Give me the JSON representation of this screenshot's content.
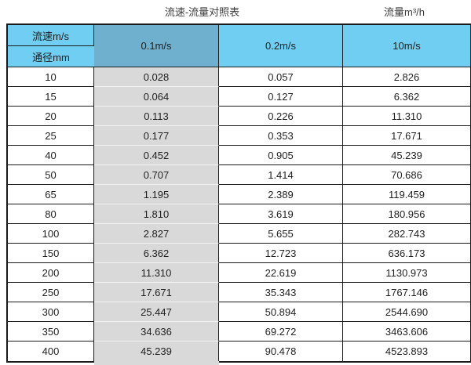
{
  "page": {
    "title_left": "流速-流量对照表",
    "title_right": "流量m³/h"
  },
  "table": {
    "corner_top": "流速m/s",
    "corner_bottom": "通径mm",
    "velocity_columns": [
      "0.1m/s",
      "0.2m/s",
      "10m/s"
    ],
    "highlighted_column_index": 0,
    "rows": [
      {
        "diameter": "10",
        "values": [
          "0.028",
          "0.057",
          "2.826"
        ]
      },
      {
        "diameter": "15",
        "values": [
          "0.064",
          "0.127",
          "6.362"
        ]
      },
      {
        "diameter": "20",
        "values": [
          "0.113",
          "0.226",
          "11.310"
        ]
      },
      {
        "diameter": "25",
        "values": [
          "0.177",
          "0.353",
          "17.671"
        ]
      },
      {
        "diameter": "40",
        "values": [
          "0.452",
          "0.905",
          "45.239"
        ]
      },
      {
        "diameter": "50",
        "values": [
          "0.707",
          "1.414",
          "70.686"
        ]
      },
      {
        "diameter": "65",
        "values": [
          "1.195",
          "2.389",
          "119.459"
        ]
      },
      {
        "diameter": "80",
        "values": [
          "1.810",
          "3.619",
          "180.956"
        ]
      },
      {
        "diameter": "100",
        "values": [
          "2.827",
          "5.655",
          "282.743"
        ]
      },
      {
        "diameter": "150",
        "values": [
          "6.362",
          "12.723",
          "636.173"
        ]
      },
      {
        "diameter": "200",
        "values": [
          "11.310",
          "22.619",
          "1130.973"
        ]
      },
      {
        "diameter": "250",
        "values": [
          "17.671",
          "35.343",
          "1767.146"
        ]
      },
      {
        "diameter": "300",
        "values": [
          "25.447",
          "50.894",
          "2544.690"
        ]
      },
      {
        "diameter": "350",
        "values": [
          "34.636",
          "69.272",
          "3463.606"
        ]
      },
      {
        "diameter": "400",
        "values": [
          "45.239",
          "90.478",
          "4523.893"
        ]
      }
    ]
  },
  "colors": {
    "header_blue": "#6fcef2",
    "highlight_header_blue": "#6fb0cf",
    "highlight_gray": "#d9d9d9",
    "border_black": "#1a1a1a"
  },
  "chart_data": {
    "type": "table",
    "title": "流速-流量对照表",
    "value_unit_label": "流量m³/h",
    "column_axis_label": "流速m/s",
    "row_axis_label": "通径mm",
    "categories": [
      10,
      15,
      20,
      25,
      40,
      50,
      65,
      80,
      100,
      150,
      200,
      250,
      300,
      350,
      400
    ],
    "series": [
      {
        "name": "0.1m/s",
        "values": [
          0.028,
          0.064,
          0.113,
          0.177,
          0.452,
          0.707,
          1.195,
          1.81,
          2.827,
          6.362,
          11.31,
          17.671,
          25.447,
          34.636,
          45.239
        ]
      },
      {
        "name": "0.2m/s",
        "values": [
          0.057,
          0.127,
          0.226,
          0.353,
          0.905,
          1.414,
          2.389,
          3.619,
          5.655,
          12.723,
          22.619,
          35.343,
          50.894,
          69.272,
          90.478
        ]
      },
      {
        "name": "10m/s",
        "values": [
          2.826,
          6.362,
          11.31,
          17.671,
          45.239,
          70.686,
          119.459,
          180.956,
          282.743,
          636.173,
          1130.973,
          1767.146,
          2544.69,
          3463.606,
          4523.893
        ]
      }
    ],
    "highlighted_series": "0.1m/s"
  }
}
